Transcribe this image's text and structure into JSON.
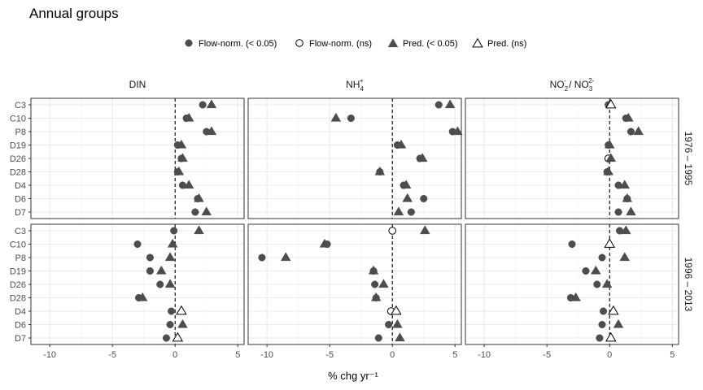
{
  "chart_data": {
    "type": "scatter",
    "title": "Annual groups",
    "xlabel": "% chg yr⁻¹",
    "xlim": [
      -11.5,
      5.5
    ],
    "x_ticks": [
      -10,
      -5,
      0,
      5
    ],
    "x_tick_labels": [
      "-10",
      "-5",
      "0",
      "5"
    ],
    "categories": [
      "C3",
      "C10",
      "P8",
      "D19",
      "D26",
      "D28",
      "D4",
      "D6",
      "D7"
    ],
    "columns": [
      {
        "id": "din",
        "label": "DIN"
      },
      {
        "id": "nh4",
        "label": "NH4+"
      },
      {
        "id": "no23",
        "label": "NO2- / NO3 2-"
      }
    ],
    "rows": [
      {
        "id": "r1",
        "label": "1976 – 1995"
      },
      {
        "id": "r2",
        "label": "1996 – 2013"
      }
    ],
    "reference_line": 0,
    "grid": true,
    "legend": {
      "position": "top",
      "items": [
        {
          "label": "Flow-norm. (< 0.05)",
          "shape": "circle",
          "filled": true
        },
        {
          "label": "Flow-norm. (ns)",
          "shape": "circle",
          "filled": false
        },
        {
          "label": "Pred. (< 0.05)",
          "shape": "triangle",
          "filled": true
        },
        {
          "label": "Pred. (ns)",
          "shape": "triangle",
          "filled": false
        }
      ]
    },
    "colors": {
      "filled": "#4d4d4d",
      "outline": "#000000",
      "strip_text": "#1a1a1a",
      "grid": "#ebebeb"
    },
    "panels": [
      {
        "row": "r1",
        "col": "din",
        "flow": [
          2.2,
          0.9,
          2.5,
          0.2,
          0.5,
          0.2,
          0.6,
          1.8,
          1.6
        ],
        "flow_sig": [
          true,
          true,
          true,
          true,
          true,
          true,
          true,
          true,
          true
        ],
        "pred": [
          2.9,
          1.1,
          2.9,
          0.5,
          0.6,
          0.3,
          1.1,
          1.9,
          2.5
        ],
        "pred_sig": [
          true,
          true,
          true,
          true,
          true,
          true,
          true,
          true,
          true
        ]
      },
      {
        "row": "r1",
        "col": "nh4",
        "flow": [
          3.7,
          -3.3,
          4.8,
          0.4,
          2.2,
          -1.0,
          0.9,
          2.5,
          1.5
        ],
        "flow_sig": [
          true,
          true,
          true,
          true,
          true,
          true,
          true,
          true,
          true
        ],
        "pred": [
          4.6,
          -4.5,
          5.2,
          0.7,
          2.4,
          -1.0,
          1.1,
          1.2,
          0.5
        ],
        "pred_sig": [
          true,
          true,
          true,
          true,
          true,
          true,
          true,
          true,
          true
        ]
      },
      {
        "row": "r1",
        "col": "no23",
        "flow": [
          -0.1,
          1.3,
          1.7,
          -0.1,
          -0.1,
          -0.2,
          0.7,
          1.4,
          0.7
        ],
        "flow_sig": [
          true,
          true,
          true,
          true,
          false,
          true,
          true,
          true,
          true
        ],
        "pred": [
          0.1,
          1.5,
          2.3,
          0.0,
          0.1,
          -0.1,
          1.2,
          1.4,
          1.7
        ],
        "pred_sig": [
          false,
          true,
          true,
          true,
          true,
          true,
          true,
          true,
          true
        ]
      },
      {
        "row": "r2",
        "col": "din",
        "flow": [
          -0.1,
          -3.0,
          -2.0,
          -2.0,
          -1.2,
          -2.9,
          -0.3,
          -0.4,
          -0.7
        ],
        "flow_sig": [
          true,
          true,
          true,
          true,
          true,
          true,
          true,
          true,
          true
        ],
        "pred": [
          1.9,
          -0.2,
          -0.4,
          -1.1,
          -0.4,
          -2.6,
          0.5,
          0.6,
          0.2
        ],
        "pred_sig": [
          true,
          true,
          true,
          true,
          true,
          true,
          false,
          true,
          false
        ]
      },
      {
        "row": "r2",
        "col": "nh4",
        "flow": [
          0.0,
          -5.2,
          -10.4,
          -1.5,
          -1.4,
          -1.3,
          -0.1,
          -0.3,
          -1.1
        ],
        "flow_sig": [
          false,
          true,
          true,
          true,
          true,
          true,
          false,
          true,
          true
        ],
        "pred": [
          2.6,
          -5.4,
          -8.5,
          -1.5,
          -0.7,
          -1.3,
          0.3,
          0.4,
          0.6
        ],
        "pred_sig": [
          true,
          true,
          true,
          true,
          true,
          true,
          false,
          true,
          true
        ]
      },
      {
        "row": "r2",
        "col": "no23",
        "flow": [
          0.8,
          -3.0,
          -0.6,
          -1.9,
          -1.0,
          -3.1,
          -0.5,
          -0.6,
          -0.8
        ],
        "flow_sig": [
          true,
          true,
          true,
          true,
          true,
          true,
          true,
          true,
          true
        ],
        "pred": [
          1.3,
          0.0,
          1.2,
          -1.1,
          -0.2,
          -2.7,
          0.3,
          0.7,
          0.1
        ],
        "pred_sig": [
          true,
          false,
          true,
          true,
          true,
          true,
          false,
          true,
          false
        ]
      }
    ]
  }
}
